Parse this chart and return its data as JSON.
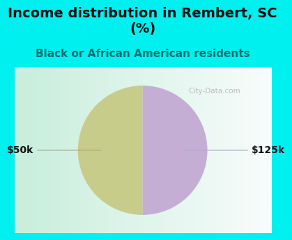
{
  "title": "Income distribution in Rembert, SC\n(%)",
  "subtitle": "Black or African American residents",
  "slices": [
    50,
    50
  ],
  "labels": [
    "$50k",
    "$125k"
  ],
  "colors": [
    "#c8cc8a",
    "#c4aed4"
  ],
  "bg_cyan": "#00f0f0",
  "title_color": "#111111",
  "subtitle_color": "#007070",
  "title_fontsize": 14,
  "subtitle_fontsize": 11,
  "label_fontsize": 10,
  "startangle": 90,
  "watermark": "City-Data.com",
  "chart_bg_left": "#c8eedc",
  "chart_bg_right": "#f8fafa"
}
